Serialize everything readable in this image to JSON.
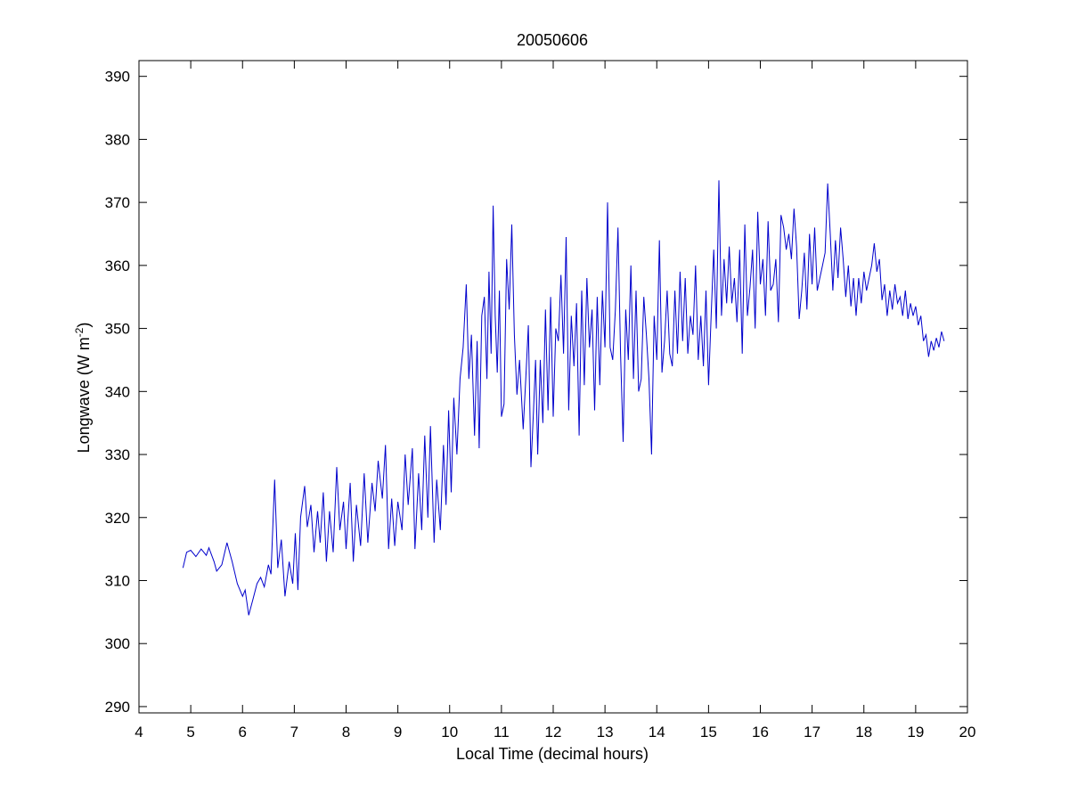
{
  "chart_data": {
    "type": "line",
    "title": "20050606",
    "xlabel": "Local Time (decimal hours)",
    "ylabel": {
      "main": "Longwave (W m",
      "superscript": "-2",
      "close": ")"
    },
    "xlim": [
      4,
      20
    ],
    "ylim": [
      289,
      392.5
    ],
    "xticks": [
      "4",
      "5",
      "6",
      "7",
      "8",
      "9",
      "10",
      "11",
      "12",
      "13",
      "14",
      "15",
      "16",
      "17",
      "18",
      "19",
      "20"
    ],
    "yticks": [
      "290",
      "300",
      "310",
      "320",
      "330",
      "340",
      "350",
      "360",
      "370",
      "380",
      "390"
    ],
    "grid": false,
    "legend": "none",
    "series": [
      {
        "color": "#0000cc",
        "points": [
          [
            4.85,
            312.0
          ],
          [
            4.92,
            314.5
          ],
          [
            5.0,
            314.8
          ],
          [
            5.1,
            313.8
          ],
          [
            5.2,
            315.0
          ],
          [
            5.3,
            314.0
          ],
          [
            5.35,
            315.2
          ],
          [
            5.45,
            313.0
          ],
          [
            5.5,
            311.5
          ],
          [
            5.6,
            312.5
          ],
          [
            5.7,
            316.0
          ],
          [
            5.8,
            313.0
          ],
          [
            5.9,
            309.5
          ],
          [
            6.0,
            307.5
          ],
          [
            6.05,
            308.5
          ],
          [
            6.12,
            304.5
          ],
          [
            6.2,
            307.0
          ],
          [
            6.28,
            309.5
          ],
          [
            6.35,
            310.5
          ],
          [
            6.42,
            309.0
          ],
          [
            6.5,
            312.5
          ],
          [
            6.55,
            311.0
          ],
          [
            6.62,
            326.0
          ],
          [
            6.68,
            312.0
          ],
          [
            6.75,
            316.5
          ],
          [
            6.82,
            307.5
          ],
          [
            6.9,
            313.0
          ],
          [
            6.97,
            309.5
          ],
          [
            7.02,
            317.5
          ],
          [
            7.07,
            308.5
          ],
          [
            7.12,
            320.0
          ],
          [
            7.2,
            325.0
          ],
          [
            7.25,
            318.5
          ],
          [
            7.32,
            322.0
          ],
          [
            7.38,
            314.5
          ],
          [
            7.45,
            321.0
          ],
          [
            7.5,
            316.0
          ],
          [
            7.56,
            324.0
          ],
          [
            7.62,
            313.0
          ],
          [
            7.68,
            321.0
          ],
          [
            7.75,
            314.5
          ],
          [
            7.82,
            328.0
          ],
          [
            7.88,
            318.0
          ],
          [
            7.95,
            322.5
          ],
          [
            8.0,
            315.0
          ],
          [
            8.08,
            325.5
          ],
          [
            8.14,
            313.0
          ],
          [
            8.2,
            322.0
          ],
          [
            8.28,
            315.5
          ],
          [
            8.35,
            327.0
          ],
          [
            8.42,
            316.0
          ],
          [
            8.5,
            325.5
          ],
          [
            8.56,
            321.0
          ],
          [
            8.62,
            329.0
          ],
          [
            8.7,
            323.0
          ],
          [
            8.76,
            331.5
          ],
          [
            8.82,
            315.0
          ],
          [
            8.88,
            323.0
          ],
          [
            8.94,
            315.5
          ],
          [
            9.0,
            322.5
          ],
          [
            9.08,
            318.0
          ],
          [
            9.14,
            330.0
          ],
          [
            9.2,
            322.0
          ],
          [
            9.28,
            331.0
          ],
          [
            9.33,
            315.0
          ],
          [
            9.4,
            327.0
          ],
          [
            9.46,
            318.0
          ],
          [
            9.52,
            333.0
          ],
          [
            9.58,
            320.0
          ],
          [
            9.63,
            334.5
          ],
          [
            9.7,
            316.0
          ],
          [
            9.75,
            326.0
          ],
          [
            9.82,
            318.0
          ],
          [
            9.88,
            331.5
          ],
          [
            9.93,
            322.0
          ],
          [
            9.98,
            337.0
          ],
          [
            10.03,
            324.0
          ],
          [
            10.08,
            339.0
          ],
          [
            10.14,
            330.0
          ],
          [
            10.2,
            342.0
          ],
          [
            10.26,
            347.0
          ],
          [
            10.32,
            357.0
          ],
          [
            10.37,
            342.0
          ],
          [
            10.42,
            349.0
          ],
          [
            10.48,
            333.0
          ],
          [
            10.53,
            348.0
          ],
          [
            10.57,
            331.0
          ],
          [
            10.62,
            352.0
          ],
          [
            10.67,
            355.0
          ],
          [
            10.72,
            342.0
          ],
          [
            10.76,
            359.0
          ],
          [
            10.8,
            346.0
          ],
          [
            10.84,
            369.5
          ],
          [
            10.88,
            352.0
          ],
          [
            10.92,
            343.0
          ],
          [
            10.96,
            356.0
          ],
          [
            11.0,
            336.0
          ],
          [
            11.05,
            338.0
          ],
          [
            11.1,
            361.0
          ],
          [
            11.15,
            353.0
          ],
          [
            11.2,
            366.5
          ],
          [
            11.25,
            349.0
          ],
          [
            11.3,
            339.5
          ],
          [
            11.35,
            345.0
          ],
          [
            11.42,
            334.0
          ],
          [
            11.47,
            342.0
          ],
          [
            11.52,
            350.5
          ],
          [
            11.57,
            328.0
          ],
          [
            11.62,
            337.0
          ],
          [
            11.66,
            345.0
          ],
          [
            11.7,
            330.0
          ],
          [
            11.75,
            345.0
          ],
          [
            11.8,
            335.0
          ],
          [
            11.85,
            353.0
          ],
          [
            11.9,
            337.0
          ],
          [
            11.95,
            355.0
          ],
          [
            12.0,
            336.0
          ],
          [
            12.05,
            350.0
          ],
          [
            12.1,
            348.0
          ],
          [
            12.15,
            358.5
          ],
          [
            12.2,
            346.0
          ],
          [
            12.25,
            364.5
          ],
          [
            12.3,
            337.0
          ],
          [
            12.35,
            352.0
          ],
          [
            12.4,
            344.0
          ],
          [
            12.45,
            354.0
          ],
          [
            12.5,
            333.0
          ],
          [
            12.55,
            356.0
          ],
          [
            12.6,
            341.0
          ],
          [
            12.65,
            358.0
          ],
          [
            12.7,
            347.0
          ],
          [
            12.75,
            353.0
          ],
          [
            12.8,
            337.0
          ],
          [
            12.85,
            355.0
          ],
          [
            12.9,
            341.0
          ],
          [
            12.95,
            356.0
          ],
          [
            13.0,
            347.0
          ],
          [
            13.05,
            370.0
          ],
          [
            13.1,
            347.0
          ],
          [
            13.15,
            345.0
          ],
          [
            13.2,
            353.0
          ],
          [
            13.25,
            366.0
          ],
          [
            13.3,
            346.0
          ],
          [
            13.35,
            332.0
          ],
          [
            13.4,
            353.0
          ],
          [
            13.45,
            345.0
          ],
          [
            13.5,
            360.0
          ],
          [
            13.55,
            342.0
          ],
          [
            13.6,
            356.0
          ],
          [
            13.65,
            340.0
          ],
          [
            13.7,
            342.0
          ],
          [
            13.75,
            355.0
          ],
          [
            13.8,
            349.0
          ],
          [
            13.85,
            342.0
          ],
          [
            13.9,
            330.0
          ],
          [
            13.95,
            352.0
          ],
          [
            14.0,
            345.0
          ],
          [
            14.05,
            364.0
          ],
          [
            14.1,
            343.0
          ],
          [
            14.15,
            348.0
          ],
          [
            14.2,
            356.0
          ],
          [
            14.25,
            346.0
          ],
          [
            14.3,
            344.0
          ],
          [
            14.35,
            356.0
          ],
          [
            14.4,
            346.0
          ],
          [
            14.45,
            359.0
          ],
          [
            14.5,
            348.0
          ],
          [
            14.55,
            358.0
          ],
          [
            14.6,
            346.0
          ],
          [
            14.65,
            352.0
          ],
          [
            14.7,
            349.0
          ],
          [
            14.75,
            360.0
          ],
          [
            14.8,
            345.0
          ],
          [
            14.85,
            352.0
          ],
          [
            14.9,
            344.0
          ],
          [
            14.95,
            356.0
          ],
          [
            15.0,
            341.0
          ],
          [
            15.05,
            352.0
          ],
          [
            15.1,
            362.5
          ],
          [
            15.15,
            350.0
          ],
          [
            15.2,
            373.5
          ],
          [
            15.25,
            352.0
          ],
          [
            15.3,
            361.0
          ],
          [
            15.35,
            354.0
          ],
          [
            15.4,
            363.0
          ],
          [
            15.45,
            354.0
          ],
          [
            15.5,
            358.0
          ],
          [
            15.55,
            351.0
          ],
          [
            15.6,
            362.5
          ],
          [
            15.65,
            346.0
          ],
          [
            15.7,
            366.5
          ],
          [
            15.75,
            352.0
          ],
          [
            15.8,
            356.5
          ],
          [
            15.85,
            362.5
          ],
          [
            15.9,
            350.0
          ],
          [
            15.95,
            368.5
          ],
          [
            16.0,
            357.0
          ],
          [
            16.05,
            361.0
          ],
          [
            16.1,
            352.0
          ],
          [
            16.15,
            367.0
          ],
          [
            16.2,
            356.0
          ],
          [
            16.25,
            357.0
          ],
          [
            16.3,
            361.0
          ],
          [
            16.35,
            351.0
          ],
          [
            16.4,
            368.0
          ],
          [
            16.45,
            366.0
          ],
          [
            16.5,
            362.5
          ],
          [
            16.55,
            365.0
          ],
          [
            16.6,
            361.0
          ],
          [
            16.65,
            369.0
          ],
          [
            16.7,
            363.0
          ],
          [
            16.75,
            351.5
          ],
          [
            16.8,
            356.0
          ],
          [
            16.85,
            362.0
          ],
          [
            16.9,
            353.0
          ],
          [
            16.95,
            365.0
          ],
          [
            17.0,
            357.0
          ],
          [
            17.05,
            366.0
          ],
          [
            17.1,
            356.0
          ],
          [
            17.15,
            358.0
          ],
          [
            17.2,
            360.0
          ],
          [
            17.25,
            362.0
          ],
          [
            17.3,
            373.0
          ],
          [
            17.35,
            365.0
          ],
          [
            17.4,
            356.0
          ],
          [
            17.45,
            364.0
          ],
          [
            17.5,
            358.0
          ],
          [
            17.55,
            366.0
          ],
          [
            17.6,
            361.0
          ],
          [
            17.65,
            355.0
          ],
          [
            17.7,
            360.0
          ],
          [
            17.75,
            353.5
          ],
          [
            17.8,
            358.0
          ],
          [
            17.85,
            352.0
          ],
          [
            17.9,
            358.0
          ],
          [
            17.95,
            354.0
          ],
          [
            18.0,
            359.0
          ],
          [
            18.05,
            356.0
          ],
          [
            18.1,
            358.0
          ],
          [
            18.15,
            360.0
          ],
          [
            18.2,
            363.5
          ],
          [
            18.25,
            359.0
          ],
          [
            18.3,
            361.0
          ],
          [
            18.35,
            354.5
          ],
          [
            18.4,
            357.0
          ],
          [
            18.45,
            352.0
          ],
          [
            18.5,
            356.0
          ],
          [
            18.55,
            353.0
          ],
          [
            18.6,
            357.0
          ],
          [
            18.65,
            354.0
          ],
          [
            18.7,
            355.0
          ],
          [
            18.75,
            352.0
          ],
          [
            18.8,
            356.0
          ],
          [
            18.85,
            351.5
          ],
          [
            18.9,
            354.0
          ],
          [
            18.95,
            352.0
          ],
          [
            19.0,
            353.5
          ],
          [
            19.05,
            350.5
          ],
          [
            19.1,
            352.0
          ],
          [
            19.15,
            348.0
          ],
          [
            19.2,
            349.0
          ],
          [
            19.25,
            345.5
          ],
          [
            19.3,
            348.0
          ],
          [
            19.35,
            346.5
          ],
          [
            19.4,
            348.5
          ],
          [
            19.45,
            347.0
          ],
          [
            19.5,
            349.5
          ],
          [
            19.55,
            348.0
          ]
        ]
      }
    ]
  }
}
